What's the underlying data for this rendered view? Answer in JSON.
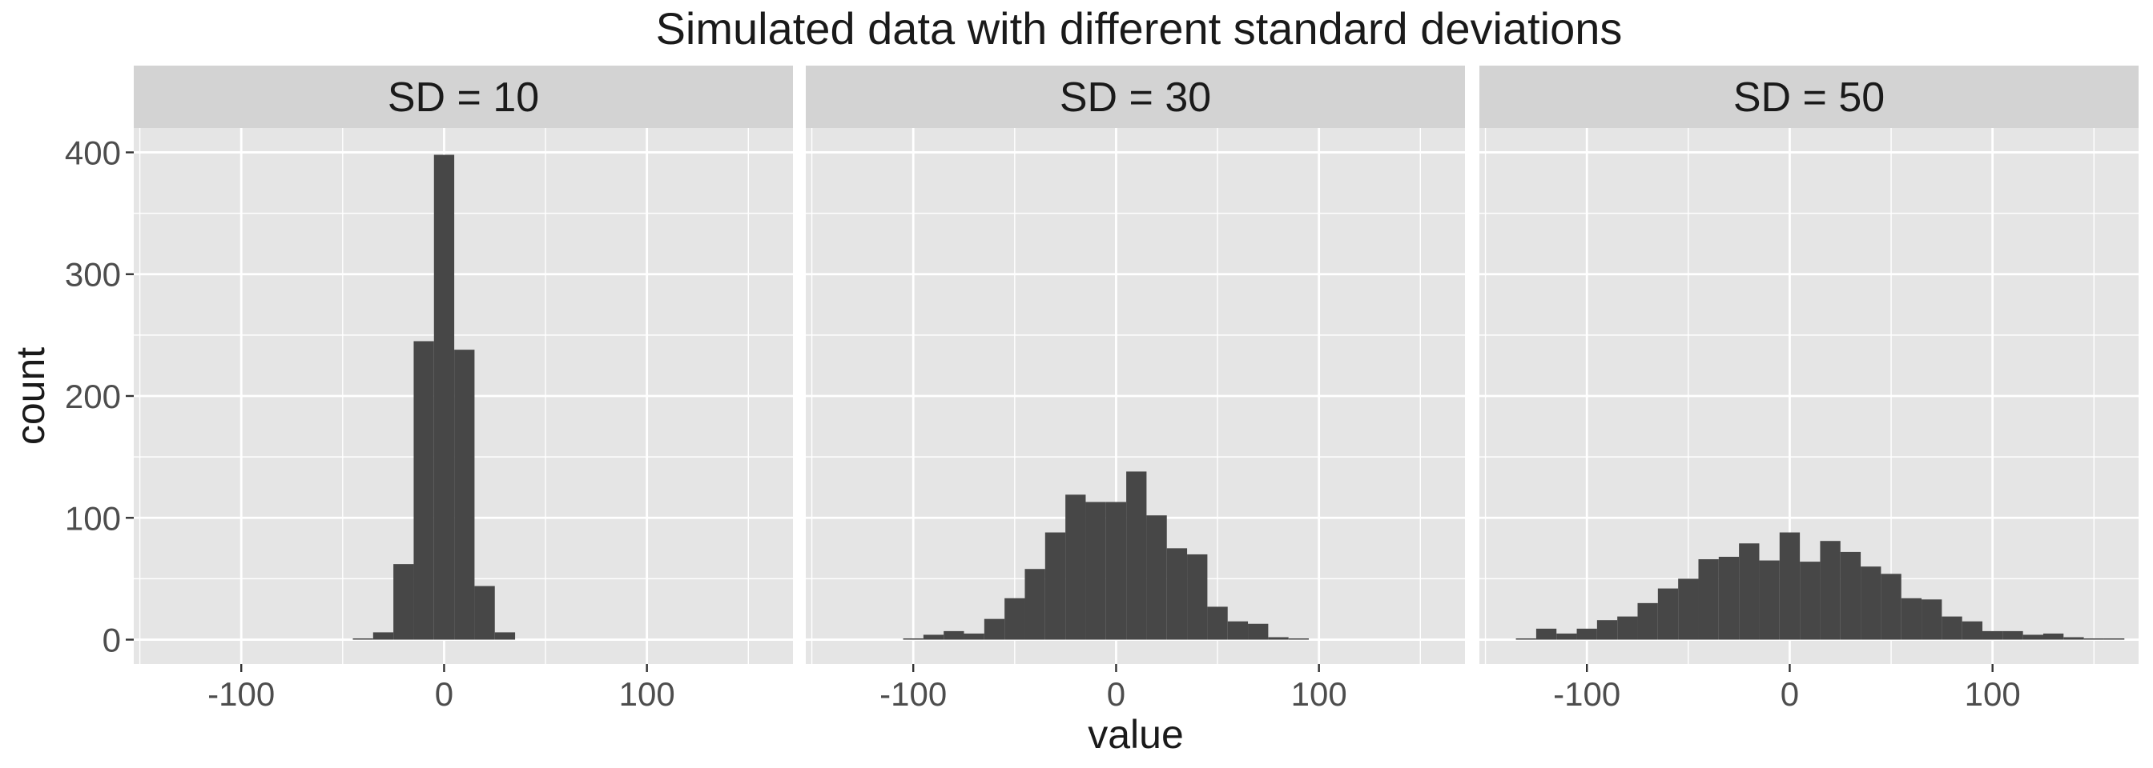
{
  "chart_data": {
    "type": "bar",
    "title": "Simulated data with different standard deviations",
    "xlabel": "value",
    "ylabel": "count",
    "xlim": [
      -153,
      172
    ],
    "ylim": [
      -20,
      420
    ],
    "x_ticks": [
      -100,
      0,
      100
    ],
    "x_tick_labels": [
      "-100",
      "0",
      "100"
    ],
    "y_ticks": [
      0,
      100,
      200,
      300,
      400
    ],
    "y_tick_labels": [
      "0",
      "100",
      "200",
      "300",
      "400"
    ],
    "grid": true,
    "colors": {
      "bar": "#474747",
      "panel_bg": "#e5e5e5",
      "strip_bg": "#d3d3d3",
      "grid": "#ffffff"
    },
    "panels": [
      {
        "strip": "SD = 10",
        "bins": [
          {
            "x0": -45,
            "x1": -35,
            "count": 1
          },
          {
            "x0": -35,
            "x1": -25,
            "count": 6
          },
          {
            "x0": -25,
            "x1": -15,
            "count": 62
          },
          {
            "x0": -15,
            "x1": -5,
            "count": 245
          },
          {
            "x0": -5,
            "x1": 5,
            "count": 398
          },
          {
            "x0": 5,
            "x1": 15,
            "count": 238
          },
          {
            "x0": 15,
            "x1": 25,
            "count": 44
          },
          {
            "x0": 25,
            "x1": 35,
            "count": 6
          }
        ]
      },
      {
        "strip": "SD = 30",
        "bins": [
          {
            "x0": -105,
            "x1": -95,
            "count": 1
          },
          {
            "x0": -95,
            "x1": -85,
            "count": 4
          },
          {
            "x0": -85,
            "x1": -75,
            "count": 7
          },
          {
            "x0": -75,
            "x1": -65,
            "count": 5
          },
          {
            "x0": -65,
            "x1": -55,
            "count": 17
          },
          {
            "x0": -55,
            "x1": -45,
            "count": 34
          },
          {
            "x0": -45,
            "x1": -35,
            "count": 58
          },
          {
            "x0": -35,
            "x1": -25,
            "count": 88
          },
          {
            "x0": -25,
            "x1": -15,
            "count": 119
          },
          {
            "x0": -15,
            "x1": -5,
            "count": 113
          },
          {
            "x0": -5,
            "x1": 5,
            "count": 113
          },
          {
            "x0": 5,
            "x1": 15,
            "count": 138
          },
          {
            "x0": 15,
            "x1": 25,
            "count": 102
          },
          {
            "x0": 25,
            "x1": 35,
            "count": 75
          },
          {
            "x0": 35,
            "x1": 45,
            "count": 70
          },
          {
            "x0": 45,
            "x1": 55,
            "count": 27
          },
          {
            "x0": 55,
            "x1": 65,
            "count": 15
          },
          {
            "x0": 65,
            "x1": 75,
            "count": 13
          },
          {
            "x0": 75,
            "x1": 85,
            "count": 2
          },
          {
            "x0": 85,
            "x1": 95,
            "count": 1
          }
        ]
      },
      {
        "strip": "SD = 50",
        "bins": [
          {
            "x0": -135,
            "x1": -125,
            "count": 1
          },
          {
            "x0": -125,
            "x1": -115,
            "count": 9
          },
          {
            "x0": -115,
            "x1": -105,
            "count": 5
          },
          {
            "x0": -105,
            "x1": -95,
            "count": 9
          },
          {
            "x0": -95,
            "x1": -85,
            "count": 16
          },
          {
            "x0": -85,
            "x1": -75,
            "count": 19
          },
          {
            "x0": -75,
            "x1": -65,
            "count": 30
          },
          {
            "x0": -65,
            "x1": -55,
            "count": 42
          },
          {
            "x0": -55,
            "x1": -45,
            "count": 50
          },
          {
            "x0": -45,
            "x1": -35,
            "count": 66
          },
          {
            "x0": -35,
            "x1": -25,
            "count": 68
          },
          {
            "x0": -25,
            "x1": -15,
            "count": 79
          },
          {
            "x0": -15,
            "x1": -5,
            "count": 65
          },
          {
            "x0": -5,
            "x1": 5,
            "count": 88
          },
          {
            "x0": 5,
            "x1": 15,
            "count": 64
          },
          {
            "x0": 15,
            "x1": 25,
            "count": 81
          },
          {
            "x0": 25,
            "x1": 35,
            "count": 72
          },
          {
            "x0": 35,
            "x1": 45,
            "count": 60
          },
          {
            "x0": 45,
            "x1": 55,
            "count": 54
          },
          {
            "x0": 55,
            "x1": 65,
            "count": 34
          },
          {
            "x0": 65,
            "x1": 75,
            "count": 33
          },
          {
            "x0": 75,
            "x1": 85,
            "count": 19
          },
          {
            "x0": 85,
            "x1": 95,
            "count": 15
          },
          {
            "x0": 95,
            "x1": 105,
            "count": 7
          },
          {
            "x0": 105,
            "x1": 115,
            "count": 7
          },
          {
            "x0": 115,
            "x1": 125,
            "count": 4
          },
          {
            "x0": 125,
            "x1": 135,
            "count": 5
          },
          {
            "x0": 135,
            "x1": 145,
            "count": 2
          },
          {
            "x0": 145,
            "x1": 155,
            "count": 1
          },
          {
            "x0": 155,
            "x1": 165,
            "count": 1
          }
        ]
      }
    ]
  }
}
